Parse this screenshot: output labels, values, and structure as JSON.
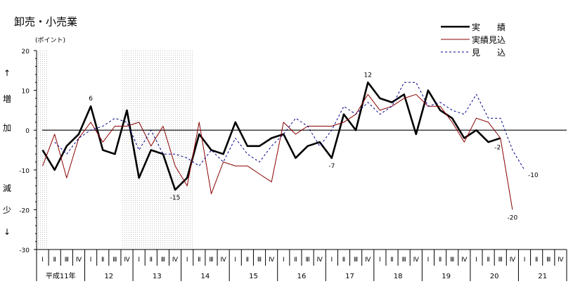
{
  "chart_data": {
    "type": "line",
    "title": "卸売・小売業",
    "ylabel": "(ポイント)",
    "side_label": [
      "↑",
      "増",
      "加",
      "減",
      "少",
      "↓"
    ],
    "ylim": [
      -30,
      20
    ],
    "yticks": [
      20,
      10,
      0,
      -10,
      -20,
      -30
    ],
    "quarter_labels": [
      "Ⅰ",
      "Ⅱ",
      "Ⅲ",
      "Ⅳ"
    ],
    "years": [
      "平成11年",
      "12",
      "13",
      "14",
      "15",
      "16",
      "17",
      "18",
      "19",
      "20",
      "21"
    ],
    "shaded_quarter_ranges": [
      [
        0,
        0
      ],
      [
        7,
        12
      ]
    ],
    "legend_position": "top-right",
    "series": [
      {
        "name": "実　　績",
        "color": "#000000",
        "style": "solid-thick",
        "values": [
          -5,
          -10,
          -4,
          -1,
          6,
          -5,
          -6,
          5,
          -12,
          -5,
          -6,
          -15,
          -12,
          -1,
          -5,
          -6,
          2,
          -4,
          -4,
          -2,
          -1,
          -7,
          -4,
          -3,
          -7,
          4,
          0,
          12,
          8,
          7,
          9,
          -1,
          10,
          5,
          3,
          -2,
          0,
          -3,
          -2
        ]
      },
      {
        "name": "実績見込",
        "color": "#8b0000",
        "style": "solid-thin",
        "values": [
          -9,
          -1,
          -12,
          -2,
          2,
          -3,
          1,
          1,
          2,
          -4,
          1,
          -9,
          -14,
          2,
          -16,
          -8,
          -9,
          -9,
          -11,
          -13,
          2,
          -1,
          1,
          1,
          1,
          2,
          4,
          9,
          5,
          6,
          8,
          9,
          6,
          6,
          2,
          -3,
          3,
          2,
          -2,
          -20
        ]
      },
      {
        "name": "見　　込",
        "color": "#00008b",
        "style": "dashed",
        "values": [
          null,
          -3,
          -6,
          -2,
          0,
          1,
          3,
          2,
          -5,
          0,
          -6,
          -6,
          -7,
          -9,
          -5,
          -8,
          -2,
          -6,
          -8,
          -4,
          -1,
          3,
          1,
          -4,
          0,
          6,
          4,
          7,
          4,
          6,
          12,
          12,
          6,
          7,
          5,
          4,
          9,
          3,
          3,
          -5,
          -10
        ]
      }
    ],
    "annotations": [
      {
        "series": 0,
        "index": 4,
        "text": "6",
        "pos": "above"
      },
      {
        "series": 0,
        "index": 11,
        "text": "-15",
        "pos": "below"
      },
      {
        "series": 0,
        "index": 24,
        "text": "-7",
        "pos": "below"
      },
      {
        "series": 0,
        "index": 27,
        "text": "12",
        "pos": "above"
      },
      {
        "series": 0,
        "index": 38,
        "text": "-2",
        "pos": "below-left"
      },
      {
        "series": 1,
        "index": 39,
        "text": "-20",
        "pos": "below"
      },
      {
        "series": 2,
        "index": 40,
        "text": "-10",
        "pos": "right"
      }
    ]
  }
}
